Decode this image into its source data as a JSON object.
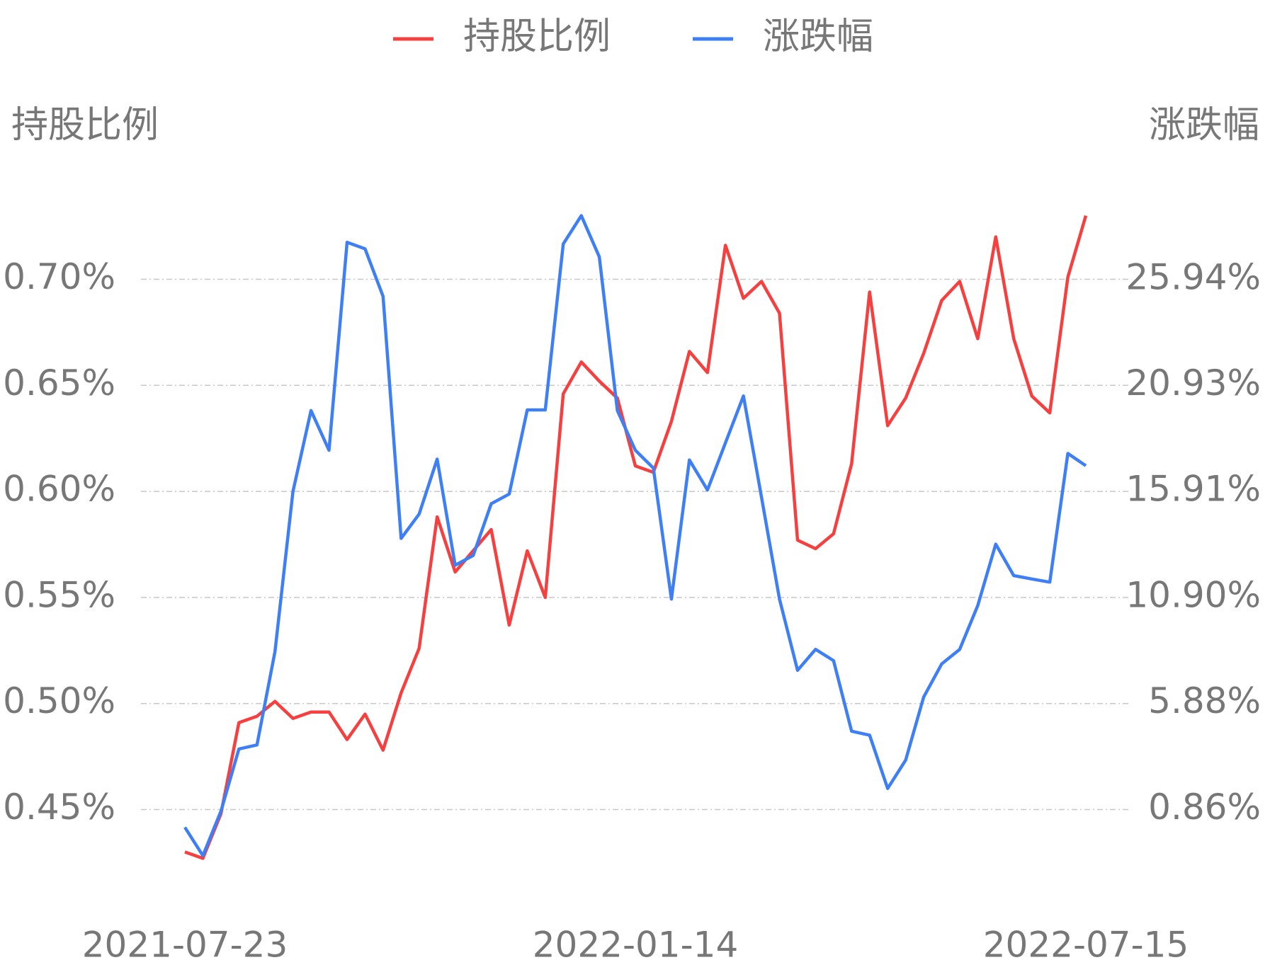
{
  "chart_data": {
    "type": "line",
    "legend": "top",
    "ylabel": "持股比例",
    "y2label": "涨跌幅",
    "categories": [
      "2021-07-23",
      null,
      null,
      null,
      null,
      null,
      null,
      null,
      null,
      null,
      null,
      null,
      null,
      null,
      null,
      null,
      null,
      null,
      null,
      null,
      null,
      null,
      null,
      null,
      null,
      "2022-01-14",
      null,
      null,
      null,
      null,
      null,
      null,
      null,
      null,
      null,
      null,
      null,
      null,
      null,
      null,
      null,
      null,
      null,
      null,
      null,
      null,
      null,
      null,
      null,
      null,
      "2022-07-15"
    ],
    "series": [
      {
        "name": "持股比例",
        "color": "#f5403f",
        "values": [
          0.43,
          0.427,
          0.448,
          0.491,
          0.494,
          0.501,
          0.493,
          0.496,
          0.496,
          0.483,
          0.495,
          0.478,
          0.505,
          0.526,
          0.588,
          0.562,
          0.572,
          0.582,
          0.537,
          0.572,
          0.55,
          0.646,
          0.661,
          0.652,
          0.644,
          0.612,
          0.609,
          0.633,
          0.666,
          0.656,
          0.716,
          0.691,
          0.699,
          0.684,
          0.577,
          0.573,
          0.58,
          0.613,
          0.694,
          0.631,
          0.644,
          0.665,
          0.69,
          0.699,
          0.672,
          0.72,
          0.672,
          0.645,
          0.637,
          0.701,
          0.73
        ]
      },
      {
        "name": "涨跌幅",
        "color": "#3f7ff5",
        "axis": "y2",
        "values": [
          0.02,
          -1.32,
          0.78,
          3.73,
          3.92,
          8.33,
          15.91,
          19.74,
          17.86,
          27.7,
          27.39,
          25.14,
          13.69,
          14.84,
          17.44,
          12.42,
          12.88,
          15.33,
          15.79,
          19.77,
          19.77,
          27.62,
          28.96,
          27.01,
          19.74,
          17.86,
          17.02,
          10.82,
          17.4,
          15.98,
          18.21,
          20.43,
          15.64,
          10.82,
          7.45,
          8.44,
          7.91,
          4.57,
          4.38,
          1.86,
          3.2,
          6.18,
          7.75,
          8.44,
          10.51,
          13.42,
          11.93,
          11.77,
          11.62,
          17.71,
          17.13
        ]
      }
    ],
    "ylim": [
      0.42,
      0.73
    ],
    "yticks": [
      {
        "value": 0.45,
        "label": "0.45%"
      },
      {
        "value": 0.5,
        "label": "0.50%"
      },
      {
        "value": 0.55,
        "label": "0.55%"
      },
      {
        "value": 0.6,
        "label": "0.60%"
      },
      {
        "value": 0.65,
        "label": "0.65%"
      },
      {
        "value": 0.7,
        "label": "0.70%"
      }
    ],
    "y2lim": [
      -2.15,
      28.96
    ],
    "y2ticks": [
      {
        "value": 0.86,
        "label": "0.86%"
      },
      {
        "value": 5.88,
        "label": "5.88%"
      },
      {
        "value": 10.9,
        "label": "10.90%"
      },
      {
        "value": 15.91,
        "label": "15.91%"
      },
      {
        "value": 20.93,
        "label": "20.93%"
      },
      {
        "value": 25.94,
        "label": "25.94%"
      }
    ],
    "grid": true
  }
}
